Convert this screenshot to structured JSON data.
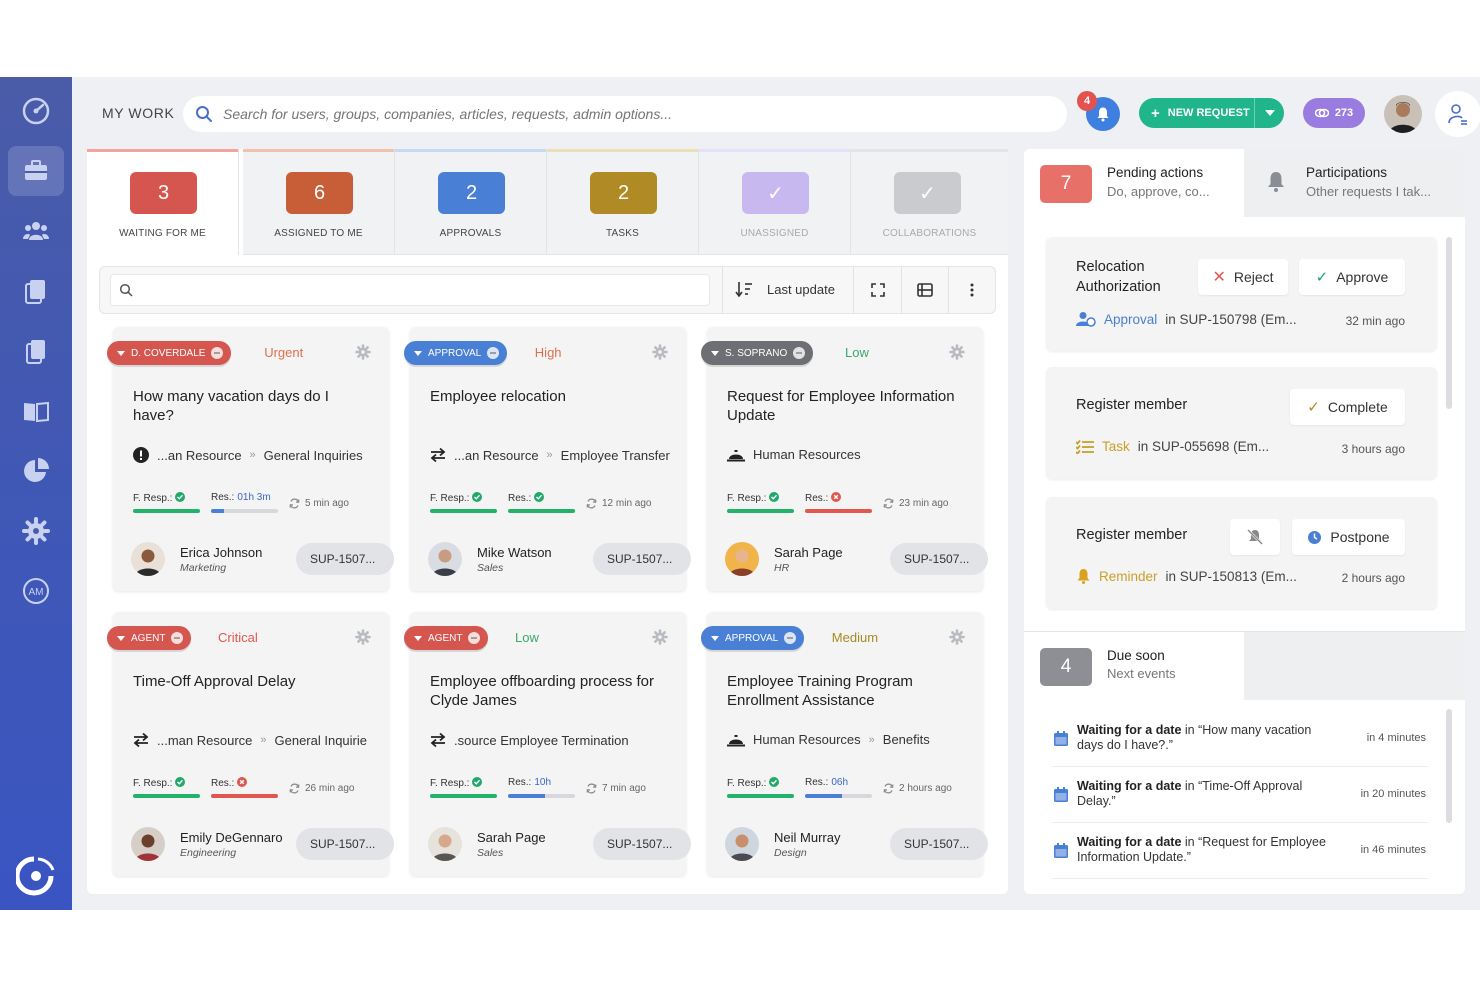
{
  "header": {
    "section_title": "MY WORK",
    "search_placeholder": "Search for users, groups, companies, articles, requests, admin options...",
    "notification_count": "4",
    "new_request_label": "NEW REQUEST",
    "coins_count": "273"
  },
  "sidebar": {
    "items": [
      {
        "icon": "dashboard-icon"
      },
      {
        "icon": "briefcase-icon",
        "active": true
      },
      {
        "icon": "users-icon"
      },
      {
        "icon": "documents-icon"
      },
      {
        "icon": "copy-icon"
      },
      {
        "icon": "book-icon"
      },
      {
        "icon": "pie-chart-icon"
      },
      {
        "icon": "settings-gear-icon"
      },
      {
        "icon": "asset-manager-icon",
        "text": "AM"
      }
    ]
  },
  "tabs": [
    {
      "count": "3",
      "label": "WAITING FOR ME",
      "color": "#d5564f",
      "line": "#f2a49d"
    },
    {
      "count": "6",
      "label": "ASSIGNED TO ME",
      "color": "#c85e37",
      "line": "#f2c1ae"
    },
    {
      "count": "2",
      "label": "APPROVALS",
      "color": "#4a7fd6",
      "line": "#c7d8f4"
    },
    {
      "count": "2",
      "label": "TASKS",
      "color": "#b08a25",
      "line": "#eadfb6"
    },
    {
      "count": "✓",
      "label": "UNASSIGNED",
      "color": "#c8b8f0",
      "line": "#e7e0fa"
    },
    {
      "count": "✓",
      "label": "COLLABORATIONS",
      "color": "#c9cbcf",
      "line": "#e3e4e6"
    }
  ],
  "toolbar": {
    "sort_label": "Last update"
  },
  "cards": [
    {
      "tag": "D. COVERDALE",
      "tag_color": "#d5564f",
      "priority": "Urgent",
      "priority_color": "#e0704a",
      "title": "How many vacation days do I have?",
      "path_icon": "exclamation-icon",
      "path_a": "...an Resource",
      "path_b": "General Inquiries",
      "resp_label": "F. Resp.:",
      "resp_status": "ok",
      "resp_fill": 1.0,
      "res_label": "Res.:",
      "res_value": "01h 3m",
      "res_status": "time",
      "res_fill": 0.2,
      "ago": "5 min ago",
      "person": "Erica Johnson",
      "dept": "Marketing",
      "ticket": "SUP-1507..."
    },
    {
      "tag": "APPROVAL",
      "tag_color": "#4a7fd6",
      "priority": "High",
      "priority_color": "#e0704a",
      "title": "Employee relocation",
      "path_icon": "transfer-icon",
      "path_a": "...an Resource",
      "path_b": "Employee Transfer",
      "resp_label": "F. Resp.:",
      "resp_status": "ok",
      "resp_fill": 1.0,
      "res_label": "Res.:",
      "res_value": "",
      "res_status": "ok",
      "res_fill": 1.0,
      "ago": "12 min ago",
      "person": "Mike Watson",
      "dept": "Sales",
      "ticket": "SUP-1507..."
    },
    {
      "tag": "S. SOPRANO",
      "tag_color": "#6d6f74",
      "priority": "Low",
      "priority_color": "#3aa86b",
      "title": "Request for Employee Information Update",
      "path_icon": "service-bell-icon",
      "path_a": "Human Resources",
      "path_b": "",
      "resp_label": "F. Resp.:",
      "resp_status": "ok",
      "resp_fill": 1.0,
      "res_label": "Res.:",
      "res_value": "",
      "res_status": "fail",
      "res_fill": 1.0,
      "ago": "23 min ago",
      "person": "Sarah Page",
      "dept": "HR",
      "ticket": "SUP-1507..."
    },
    {
      "tag": "AGENT",
      "tag_color": "#d5564f",
      "priority": "Critical",
      "priority_color": "#e0574f",
      "title": "Time-Off Approval Delay",
      "path_icon": "transfer-icon",
      "path_a": "...man Resource",
      "path_b": "General Inquirie",
      "resp_label": "F. Resp.:",
      "resp_status": "ok",
      "resp_fill": 1.0,
      "res_label": "Res.:",
      "res_value": "",
      "res_status": "fail",
      "res_fill": 1.0,
      "ago": "26 min ago",
      "person": "Emily DeGennaro",
      "dept": "Engineering",
      "ticket": "SUP-1507..."
    },
    {
      "tag": "AGENT",
      "tag_color": "#d5564f",
      "priority": "Low",
      "priority_color": "#3aa86b",
      "title": "Employee offboarding process for Clyde James",
      "path_icon": "transfer-icon",
      "path_a": ".source Employee Termination",
      "path_b": "",
      "resp_label": "F. Resp.:",
      "resp_status": "ok",
      "resp_fill": 1.0,
      "res_label": "Res.:",
      "res_value": "10h",
      "res_status": "time",
      "res_fill": 0.55,
      "ago": "7 min ago",
      "person": "Sarah Page",
      "dept": "Sales",
      "ticket": "SUP-1507..."
    },
    {
      "tag": "APPROVAL",
      "tag_color": "#4a7fd6",
      "priority": "Medium",
      "priority_color": "#a68a1f",
      "title": "Employee Training Program Enrollment Assistance",
      "path_icon": "service-bell-icon",
      "path_a": "Human Resources",
      "path_b": "Benefits",
      "resp_label": "F. Resp.:",
      "resp_status": "ok",
      "resp_fill": 1.0,
      "res_label": "Res.:",
      "res_value": "06h",
      "res_status": "time",
      "res_fill": 0.55,
      "ago": "2 hours ago",
      "person": "Neil Murray",
      "dept": "Design",
      "ticket": "SUP-1507..."
    }
  ],
  "right": {
    "pending": {
      "count": "7",
      "title": "Pending actions",
      "sub": "Do, approve, co..."
    },
    "participations": {
      "title": "Participations",
      "sub": "Other requests I tak..."
    },
    "actions": [
      {
        "title": "Relocation Authorization",
        "btn1": "Reject",
        "btn2": "Approve",
        "kind": "Approval",
        "ref": "in SUP-150798 (Em...",
        "time": "32 min ago"
      },
      {
        "title": "Register member",
        "btn2": "Complete",
        "kind": "Task",
        "ref": "in SUP-055698 (Em...",
        "time": "3 hours ago"
      },
      {
        "title": "Register member",
        "btn2": "Postpone",
        "kind": "Reminder",
        "ref": "in SUP-150813 (Em...",
        "time": "2 hours ago"
      }
    ],
    "due": {
      "count": "4",
      "title": "Due soon",
      "sub": "Next events"
    },
    "due_items": [
      {
        "bold": "Waiting for a date",
        "rest": " in “How many vacation days do I have?.”",
        "when": "in 4 minutes"
      },
      {
        "bold": "Waiting for a date",
        "rest": " in “Time-Off Approval Delay.”",
        "when": "in 20 minutes"
      },
      {
        "bold": "Waiting for a date",
        "rest": " in “Request for Employee Information Update.”",
        "when": "in 46 minutes"
      }
    ]
  }
}
